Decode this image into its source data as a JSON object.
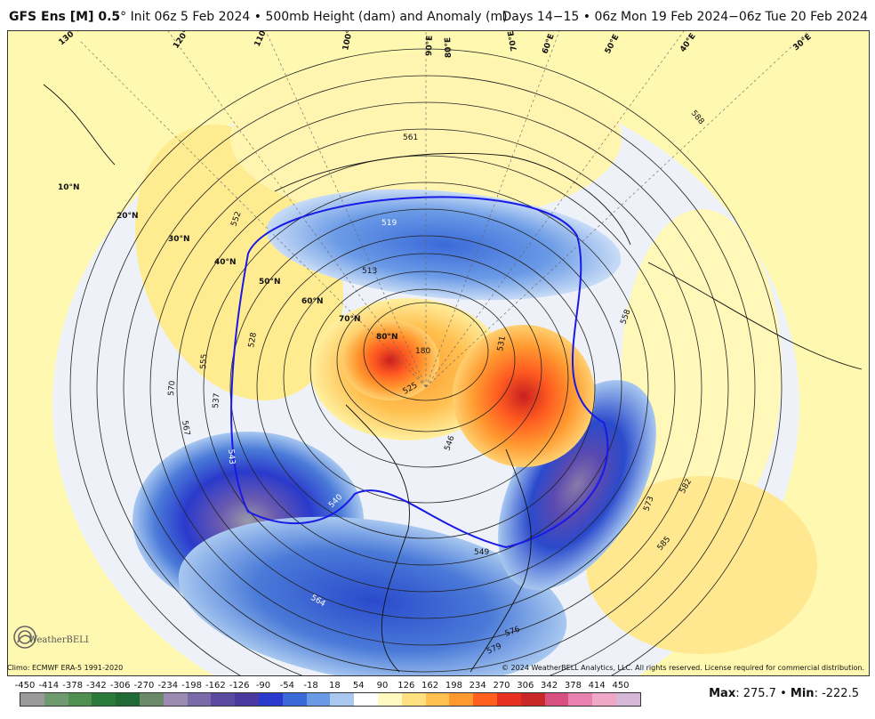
{
  "header": {
    "model": "GFS Ens [M] 0.5",
    "degree": "°",
    "init": "Init 06z 5 Feb 2024",
    "bullet": "•",
    "field": "500mb Height (dam) and Anomaly (m)",
    "valid": "Days 14−15 • 06z Mon 19 Feb 2024−06z Tue 20 Feb 2024"
  },
  "map": {
    "latitude_labels": [
      "10°N",
      "20°N",
      "30°N",
      "40°N",
      "50°N",
      "60°N",
      "70°N",
      "80°N"
    ],
    "longitude_labels": [
      "130°E",
      "120°E",
      "110°E",
      "100°E",
      "90°E",
      "80°E",
      "70°E",
      "60°E",
      "50°E",
      "40°E",
      "30°E"
    ],
    "contour_labels": [
      "561",
      "588",
      "519",
      "513",
      "552",
      "528",
      "555",
      "570",
      "567",
      "537",
      "543",
      "540",
      "525",
      "180",
      "531",
      "558",
      "564",
      "576",
      "579",
      "582",
      "573",
      "585",
      "546",
      "549"
    ],
    "colors": {
      "neutral": "#eef2f8",
      "background": "#fff8b0",
      "height_line": "#222222",
      "highlight_line": "#1a1ae6"
    }
  },
  "credits": {
    "climo": "Climo: ECMWF ERA-5 1991-2020",
    "copyright": "© 2024 WeatherBELL Analytics, LLC. All rights reserved. License required for commercial distribution.",
    "logo_text": "WeatherBELL"
  },
  "legend": {
    "ticks": [
      "-450",
      "-414",
      "-378",
      "-342",
      "-306",
      "-270",
      "-234",
      "-198",
      "-162",
      "-126",
      "-90",
      "-54",
      "-18",
      "18",
      "54",
      "90",
      "126",
      "162",
      "198",
      "234",
      "270",
      "306",
      "342",
      "378",
      "414",
      "450"
    ],
    "swatches": [
      "#9a9a9a",
      "#6f9a6f",
      "#4f8f4f",
      "#2a7a3a",
      "#1f6a35",
      "#6a8a6a",
      "#9a8ab2",
      "#7a6aa8",
      "#5a4aa0",
      "#4a3aa0",
      "#2a3acc",
      "#3a6ad8",
      "#6a9ae6",
      "#a8c8f0",
      "#ffffff",
      "#fffac0",
      "#ffe080",
      "#ffc050",
      "#ff9a30",
      "#ff6020",
      "#e83020",
      "#c82828",
      "#d85080",
      "#e880b0",
      "#f0a8c8",
      "#d8b8d8"
    ],
    "max_label": "Max",
    "max_value": "275.7",
    "sep": "•",
    "min_label": "Min",
    "min_value": "-222.5"
  }
}
